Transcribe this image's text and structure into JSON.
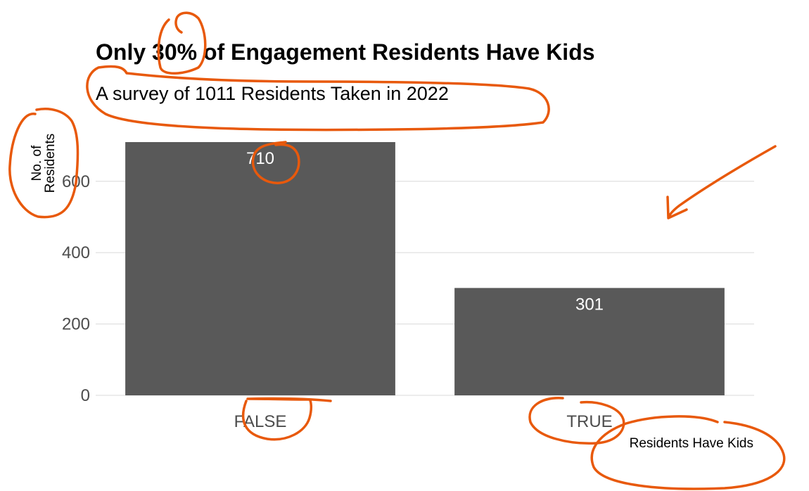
{
  "chart_data": {
    "type": "bar",
    "title": "Only 30% of Engagement Residents Have Kids",
    "subtitle": "A survey of 1011 Residents Taken in 2022",
    "xlabel": "Residents Have Kids",
    "ylabel_lines": [
      "No. of",
      "Residents"
    ],
    "categories": [
      "FALSE",
      "TRUE"
    ],
    "values": [
      710,
      301
    ],
    "data_labels": [
      "710",
      "301"
    ],
    "ylim": [
      0,
      710
    ],
    "yticks": [
      0,
      200,
      400,
      600
    ],
    "ytick_labels": [
      "0",
      "200",
      "400",
      "600"
    ],
    "grid": true,
    "bar_color": "#595959",
    "annotation_color": "#e8590c"
  }
}
